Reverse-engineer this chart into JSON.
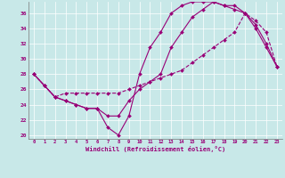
{
  "xlabel": "Windchill (Refroidissement éolien,°C)",
  "bg_color": "#c8e8e8",
  "line_color": "#990077",
  "xlim": [
    -0.5,
    23.5
  ],
  "ylim": [
    19.5,
    37.5
  ],
  "yticks": [
    20,
    22,
    24,
    26,
    28,
    30,
    32,
    34,
    36
  ],
  "xticks": [
    0,
    1,
    2,
    3,
    4,
    5,
    6,
    7,
    8,
    9,
    10,
    11,
    12,
    13,
    14,
    15,
    16,
    17,
    18,
    19,
    20,
    21,
    22,
    23
  ],
  "line1_x": [
    0,
    1,
    2,
    3,
    4,
    5,
    6,
    7,
    8,
    9,
    10,
    11,
    12,
    13,
    14,
    15,
    16,
    17,
    18,
    19,
    20,
    21,
    22,
    23
  ],
  "line1_y": [
    28.0,
    26.5,
    25.0,
    24.5,
    24.0,
    23.5,
    23.5,
    21.0,
    20.0,
    22.5,
    28.0,
    31.5,
    33.5,
    36.0,
    37.0,
    37.5,
    37.5,
    37.5,
    37.0,
    36.5,
    36.0,
    34.5,
    32.0,
    29.0
  ],
  "line2_x": [
    0,
    1,
    2,
    3,
    4,
    5,
    6,
    7,
    8,
    9,
    10,
    11,
    12,
    13,
    14,
    15,
    16,
    17,
    18,
    19,
    20,
    21,
    22,
    23
  ],
  "line2_y": [
    28.0,
    26.5,
    25.0,
    25.5,
    25.5,
    25.5,
    25.5,
    25.5,
    25.5,
    26.0,
    26.5,
    27.0,
    27.5,
    28.0,
    28.5,
    29.5,
    30.5,
    31.5,
    32.5,
    33.5,
    36.0,
    35.0,
    33.5,
    29.0
  ],
  "line3_x": [
    0,
    1,
    2,
    3,
    4,
    5,
    6,
    7,
    8,
    9,
    10,
    11,
    12,
    13,
    14,
    15,
    16,
    17,
    18,
    19,
    20,
    21,
    22,
    23
  ],
  "line3_y": [
    28.0,
    26.5,
    25.0,
    24.5,
    24.0,
    23.5,
    23.5,
    22.5,
    22.5,
    24.5,
    26.0,
    27.0,
    28.0,
    31.5,
    33.5,
    35.5,
    36.5,
    37.5,
    37.0,
    37.0,
    36.0,
    34.0,
    31.5,
    29.0
  ]
}
